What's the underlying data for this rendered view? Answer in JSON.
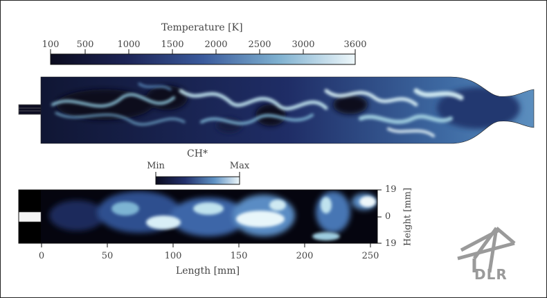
{
  "temperature_colorbar": {
    "title": "Temperature [K]",
    "min": 100,
    "max": 3600,
    "ticks": [
      "100",
      "500",
      "1000",
      "1500",
      "2000",
      "2500",
      "3000",
      "3600"
    ]
  },
  "ch_colorbar": {
    "title": "CH*",
    "min_label": "Min",
    "max_label": "Max"
  },
  "x_axis": {
    "label": "Length [mm]",
    "ticks": [
      "0",
      "50",
      "100",
      "150",
      "200",
      "250"
    ]
  },
  "y_axis": {
    "label": "Height [mm]",
    "ticks": [
      "19",
      "0",
      "19"
    ]
  },
  "logo": {
    "text": "DLR"
  },
  "colors": {
    "cmap_dark": "#0b0b1e",
    "cmap_mid": "#3a5a9c",
    "cmap_light": "#e8f4f8",
    "logo_gray": "#9a9a9a"
  }
}
